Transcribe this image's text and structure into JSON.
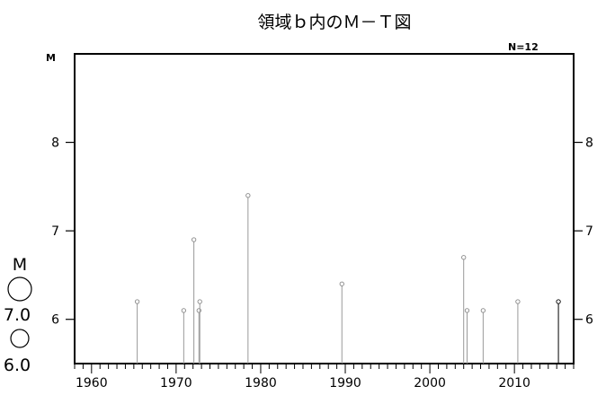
{
  "chart_data": {
    "type": "stem",
    "title": "領域ｂ内のＭ－Ｔ図",
    "ylabel": "M",
    "count_label": "N=12",
    "xlim": [
      1958,
      2017
    ],
    "ylim": [
      5.5,
      9.0
    ],
    "x_ticks": [
      1960,
      1970,
      1980,
      1990,
      2000,
      2010
    ],
    "y_ticks": [
      6,
      7,
      8
    ],
    "events": [
      {
        "year": 1965.4,
        "magnitude": 6.2
      },
      {
        "year": 1970.9,
        "magnitude": 6.1
      },
      {
        "year": 1972.1,
        "magnitude": 6.9
      },
      {
        "year": 1972.7,
        "magnitude": 6.1
      },
      {
        "year": 1972.8,
        "magnitude": 6.2
      },
      {
        "year": 1978.5,
        "magnitude": 7.4
      },
      {
        "year": 1989.6,
        "magnitude": 6.4
      },
      {
        "year": 2004.0,
        "magnitude": 6.7
      },
      {
        "year": 2004.4,
        "magnitude": 6.1
      },
      {
        "year": 2006.3,
        "magnitude": 6.1
      },
      {
        "year": 2010.4,
        "magnitude": 6.2
      },
      {
        "year": 2015.2,
        "magnitude": 6.2
      }
    ],
    "legend": {
      "title": "M",
      "entries": [
        "7.0",
        "6.0"
      ]
    }
  }
}
